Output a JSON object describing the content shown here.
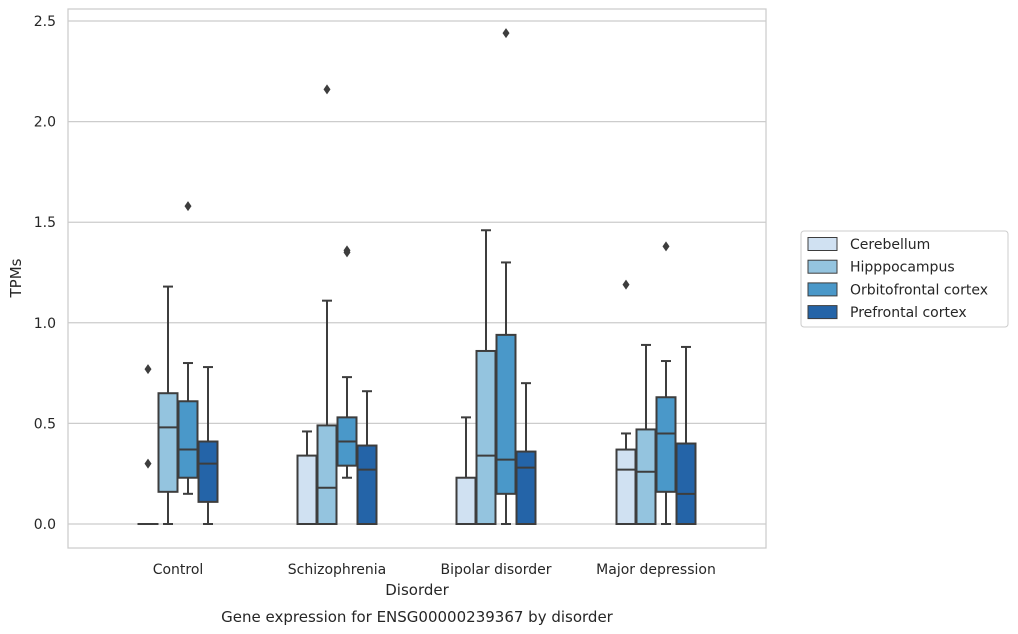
{
  "chart_data": {
    "type": "box",
    "title": "",
    "caption": "Gene expression for ENSG00000239367 by disorder",
    "xlabel": "Disorder",
    "ylabel": "TPMs",
    "ylim": [
      -0.12,
      2.57
    ],
    "yticks": [
      0.0,
      0.5,
      1.0,
      1.5,
      2.0,
      2.5
    ],
    "ytick_labels": [
      "0.0",
      "0.5",
      "1.0",
      "1.5",
      "2.0",
      "2.5"
    ],
    "grid": "horizontal",
    "legend_position": "right",
    "categories": [
      "Control",
      "Schizophrenia",
      "Bipolar disorder",
      "Major depression"
    ],
    "series": [
      {
        "name": "Cerebellum",
        "color": "#d0e1f2",
        "boxes": [
          {
            "whislo": 0.0,
            "q1": 0.0,
            "med": 0.0,
            "q3": 0.0,
            "whishi": 0.0,
            "fliers": [
              0.77,
              0.3
            ]
          },
          {
            "whislo": 0.0,
            "q1": 0.0,
            "med": 0.0,
            "q3": 0.34,
            "whishi": 0.46,
            "fliers": []
          },
          {
            "whislo": 0.0,
            "q1": 0.0,
            "med": 0.0,
            "q3": 0.23,
            "whishi": 0.53,
            "fliers": []
          },
          {
            "whislo": 0.0,
            "q1": 0.0,
            "med": 0.27,
            "q3": 0.37,
            "whishi": 0.45,
            "fliers": [
              1.19
            ]
          }
        ]
      },
      {
        "name": "Hipppocampus",
        "color": "#94c4df",
        "boxes": [
          {
            "whislo": 0.0,
            "q1": 0.16,
            "med": 0.48,
            "q3": 0.65,
            "whishi": 1.18,
            "fliers": []
          },
          {
            "whislo": 0.0,
            "q1": 0.0,
            "med": 0.18,
            "q3": 0.49,
            "whishi": 1.11,
            "fliers": [
              2.16
            ]
          },
          {
            "whislo": 0.0,
            "q1": 0.0,
            "med": 0.34,
            "q3": 0.86,
            "whishi": 1.46,
            "fliers": []
          },
          {
            "whislo": 0.0,
            "q1": 0.0,
            "med": 0.26,
            "q3": 0.47,
            "whishi": 0.89,
            "fliers": []
          }
        ]
      },
      {
        "name": "Orbitofrontal cortex",
        "color": "#4a98c9",
        "boxes": [
          {
            "whislo": 0.15,
            "q1": 0.23,
            "med": 0.37,
            "q3": 0.61,
            "whishi": 0.8,
            "fliers": [
              1.58
            ]
          },
          {
            "whislo": 0.23,
            "q1": 0.29,
            "med": 0.41,
            "q3": 0.53,
            "whishi": 0.73,
            "fliers": [
              1.35,
              1.36
            ]
          },
          {
            "whislo": 0.0,
            "q1": 0.15,
            "med": 0.32,
            "q3": 0.94,
            "whishi": 1.3,
            "fliers": [
              2.44
            ]
          },
          {
            "whislo": 0.0,
            "q1": 0.16,
            "med": 0.45,
            "q3": 0.63,
            "whishi": 0.81,
            "fliers": [
              1.38
            ]
          }
        ]
      },
      {
        "name": "Prefrontal cortex",
        "color": "#2464a8",
        "boxes": [
          {
            "whislo": 0.0,
            "q1": 0.11,
            "med": 0.3,
            "q3": 0.41,
            "whishi": 0.78,
            "fliers": []
          },
          {
            "whislo": 0.0,
            "q1": 0.0,
            "med": 0.27,
            "q3": 0.39,
            "whishi": 0.66,
            "fliers": []
          },
          {
            "whislo": 0.0,
            "q1": 0.0,
            "med": 0.28,
            "q3": 0.36,
            "whishi": 0.7,
            "fliers": []
          },
          {
            "whislo": 0.0,
            "q1": 0.0,
            "med": 0.15,
            "q3": 0.4,
            "whishi": 0.88,
            "fliers": []
          }
        ]
      }
    ]
  }
}
